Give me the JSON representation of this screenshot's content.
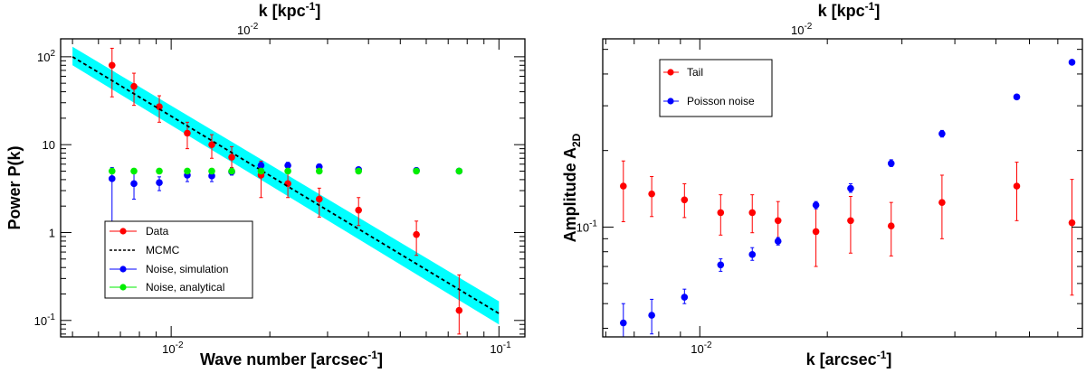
{
  "chart_data": [
    {
      "type": "scatter",
      "xscale": "log",
      "yscale": "log",
      "xlim": [
        0.0046,
        0.12
      ],
      "ylim": [
        0.065,
        160
      ],
      "xlabel": "Wave number [arcsec",
      "xlabel_sup": "-1",
      "xlabel_end": "]",
      "ylabel": "Power P(k)",
      "top_xlabel": "k [kpc",
      "top_xlabel_sup": "-1",
      "top_xlabel_end": "]",
      "top_tick_label": "10",
      "top_tick_exp": "-2",
      "x_tick_labels": [
        {
          "base": "10",
          "exp": "-2",
          "v": 0.01
        },
        {
          "base": "10",
          "exp": "-1",
          "v": 0.1
        }
      ],
      "y_tick_labels": [
        {
          "base": "10",
          "exp": "-1",
          "v": 0.1
        },
        {
          "text": "1",
          "v": 1
        },
        {
          "text": "10",
          "v": 10
        },
        {
          "base": "10",
          "exp": "2",
          "v": 100
        }
      ],
      "band": {
        "color": "#00ffff",
        "x": [
          0.005,
          0.1
        ],
        "lower": [
          80,
          0.09
        ],
        "upper": [
          130,
          0.165
        ]
      },
      "series": [
        {
          "name": "Data",
          "color": "#ff0000",
          "style": "marker",
          "points": [
            {
              "x": 0.0066,
              "y": 80,
              "lo": 35,
              "hi": 125
            },
            {
              "x": 0.0077,
              "y": 46,
              "lo": 28,
              "hi": 65
            },
            {
              "x": 0.0092,
              "y": 27,
              "lo": 18,
              "hi": 36
            },
            {
              "x": 0.0112,
              "y": 13.5,
              "lo": 9,
              "hi": 18
            },
            {
              "x": 0.0133,
              "y": 10,
              "lo": 7,
              "hi": 13
            },
            {
              "x": 0.0153,
              "y": 7.2,
              "lo": 5.5,
              "hi": 9.5
            },
            {
              "x": 0.0188,
              "y": 4.5,
              "lo": 2.5,
              "hi": 6.5
            },
            {
              "x": 0.0227,
              "y": 3.6,
              "lo": 2.5,
              "hi": 5
            },
            {
              "x": 0.0283,
              "y": 2.4,
              "lo": 1.5,
              "hi": 3.2
            },
            {
              "x": 0.0373,
              "y": 1.8,
              "lo": 1.2,
              "hi": 2.5
            },
            {
              "x": 0.056,
              "y": 0.95,
              "lo": 0.55,
              "hi": 1.35
            },
            {
              "x": 0.0756,
              "y": 0.13,
              "lo": 0.07,
              "hi": 0.33
            }
          ]
        },
        {
          "name": "MCMC",
          "color": "#000000",
          "style": "dashed",
          "x": [
            0.005,
            0.1
          ],
          "y": [
            100,
            0.12
          ]
        },
        {
          "name": "Noise, simulation",
          "color": "#0000ff",
          "style": "marker",
          "points": [
            {
              "x": 0.0066,
              "y": 4.1,
              "lo": 1.3,
              "hi": 5.5
            },
            {
              "x": 0.0077,
              "y": 3.6,
              "lo": 2.4,
              "hi": 5.2
            },
            {
              "x": 0.0092,
              "y": 3.7,
              "lo": 3.0,
              "hi": 4.3
            },
            {
              "x": 0.0112,
              "y": 4.5,
              "lo": 3.8,
              "hi": 5.2
            },
            {
              "x": 0.0133,
              "y": 4.4,
              "lo": 3.8,
              "hi": 5.0
            },
            {
              "x": 0.0153,
              "y": 4.9,
              "lo": 4.5,
              "hi": 5.4
            },
            {
              "x": 0.0188,
              "y": 5.8,
              "lo": 5.3,
              "hi": 6.3
            },
            {
              "x": 0.0227,
              "y": 5.8,
              "lo": 5.3,
              "hi": 6.3
            },
            {
              "x": 0.0283,
              "y": 5.6,
              "lo": 5.2,
              "hi": 6.0
            },
            {
              "x": 0.0373,
              "y": 5.2,
              "lo": 4.9,
              "hi": 5.5
            },
            {
              "x": 0.056,
              "y": 5.1,
              "lo": 4.9,
              "hi": 5.3
            },
            {
              "x": 0.0756,
              "y": 5.0,
              "lo": 4.8,
              "hi": 5.2
            }
          ]
        },
        {
          "name": "Noise, analytical",
          "color": "#00ee00",
          "style": "marker",
          "points": [
            {
              "x": 0.0066,
              "y": 5.0
            },
            {
              "x": 0.0077,
              "y": 5.0
            },
            {
              "x": 0.0092,
              "y": 5.0
            },
            {
              "x": 0.0112,
              "y": 5.0
            },
            {
              "x": 0.0133,
              "y": 5.0
            },
            {
              "x": 0.0153,
              "y": 5.0
            },
            {
              "x": 0.0188,
              "y": 5.0
            },
            {
              "x": 0.0227,
              "y": 5.0
            },
            {
              "x": 0.0283,
              "y": 5.0
            },
            {
              "x": 0.0373,
              "y": 5.0
            },
            {
              "x": 0.056,
              "y": 5.0
            },
            {
              "x": 0.0756,
              "y": 5.0
            }
          ]
        }
      ],
      "legend": {
        "placement": "lower-left",
        "entries": [
          "Data",
          "MCMC",
          "Noise, simulation",
          "Noise, analytical"
        ]
      }
    },
    {
      "type": "scatter",
      "xscale": "log",
      "yscale": "log",
      "xlim": [
        0.0059,
        0.08
      ],
      "ylim": [
        0.037,
        0.55
      ],
      "xlabel": "k [arcsec",
      "xlabel_sup": "-1",
      "xlabel_end": "]",
      "ylabel": "Amplitude A",
      "ylabel_sub": "2D",
      "top_xlabel": "k [kpc",
      "top_xlabel_sup": "-1",
      "top_xlabel_end": "]",
      "top_tick_label": "10",
      "top_tick_exp": "-2",
      "x_tick_labels": [
        {
          "base": "10",
          "exp": "-2",
          "v": 0.01
        }
      ],
      "y_tick_labels": [
        {
          "base": "10",
          "exp": "-1",
          "v": 0.1
        }
      ],
      "series": [
        {
          "name": "Tail",
          "color": "#ff0000",
          "style": "marker",
          "points": [
            {
              "x": 0.0066,
              "y": 0.145,
              "lo": 0.105,
              "hi": 0.182
            },
            {
              "x": 0.0077,
              "y": 0.135,
              "lo": 0.11,
              "hi": 0.158
            },
            {
              "x": 0.0092,
              "y": 0.128,
              "lo": 0.109,
              "hi": 0.148
            },
            {
              "x": 0.0112,
              "y": 0.114,
              "lo": 0.093,
              "hi": 0.134
            },
            {
              "x": 0.0133,
              "y": 0.114,
              "lo": 0.095,
              "hi": 0.134
            },
            {
              "x": 0.0153,
              "y": 0.106,
              "lo": 0.089,
              "hi": 0.126
            },
            {
              "x": 0.0188,
              "y": 0.096,
              "lo": 0.07,
              "hi": 0.122
            },
            {
              "x": 0.0227,
              "y": 0.106,
              "lo": 0.079,
              "hi": 0.132
            },
            {
              "x": 0.0283,
              "y": 0.101,
              "lo": 0.077,
              "hi": 0.125
            },
            {
              "x": 0.0373,
              "y": 0.125,
              "lo": 0.09,
              "hi": 0.16
            },
            {
              "x": 0.056,
              "y": 0.145,
              "lo": 0.106,
              "hi": 0.18
            },
            {
              "x": 0.0756,
              "y": 0.104,
              "lo": 0.054,
              "hi": 0.154
            }
          ]
        },
        {
          "name": "Poisson noise",
          "color": "#0000ff",
          "style": "marker",
          "points": [
            {
              "x": 0.0066,
              "y": 0.042,
              "lo": 0.035,
              "hi": 0.05
            },
            {
              "x": 0.0077,
              "y": 0.045,
              "lo": 0.038,
              "hi": 0.052
            },
            {
              "x": 0.0092,
              "y": 0.053,
              "lo": 0.05,
              "hi": 0.057
            },
            {
              "x": 0.0112,
              "y": 0.071,
              "lo": 0.067,
              "hi": 0.075
            },
            {
              "x": 0.0133,
              "y": 0.078,
              "lo": 0.074,
              "hi": 0.083
            },
            {
              "x": 0.0153,
              "y": 0.088,
              "lo": 0.085,
              "hi": 0.091
            },
            {
              "x": 0.0188,
              "y": 0.122,
              "lo": 0.118,
              "hi": 0.126
            },
            {
              "x": 0.0227,
              "y": 0.142,
              "lo": 0.137,
              "hi": 0.148
            },
            {
              "x": 0.0283,
              "y": 0.178,
              "lo": 0.173,
              "hi": 0.184
            },
            {
              "x": 0.0373,
              "y": 0.233,
              "lo": 0.226,
              "hi": 0.24
            },
            {
              "x": 0.056,
              "y": 0.325,
              "lo": 0.32,
              "hi": 0.33
            },
            {
              "x": 0.0756,
              "y": 0.445,
              "lo": 0.44,
              "hi": 0.45
            }
          ]
        }
      ],
      "legend": {
        "placement": "top-left",
        "entries": [
          "Tail",
          "Poisson noise"
        ]
      }
    }
  ]
}
